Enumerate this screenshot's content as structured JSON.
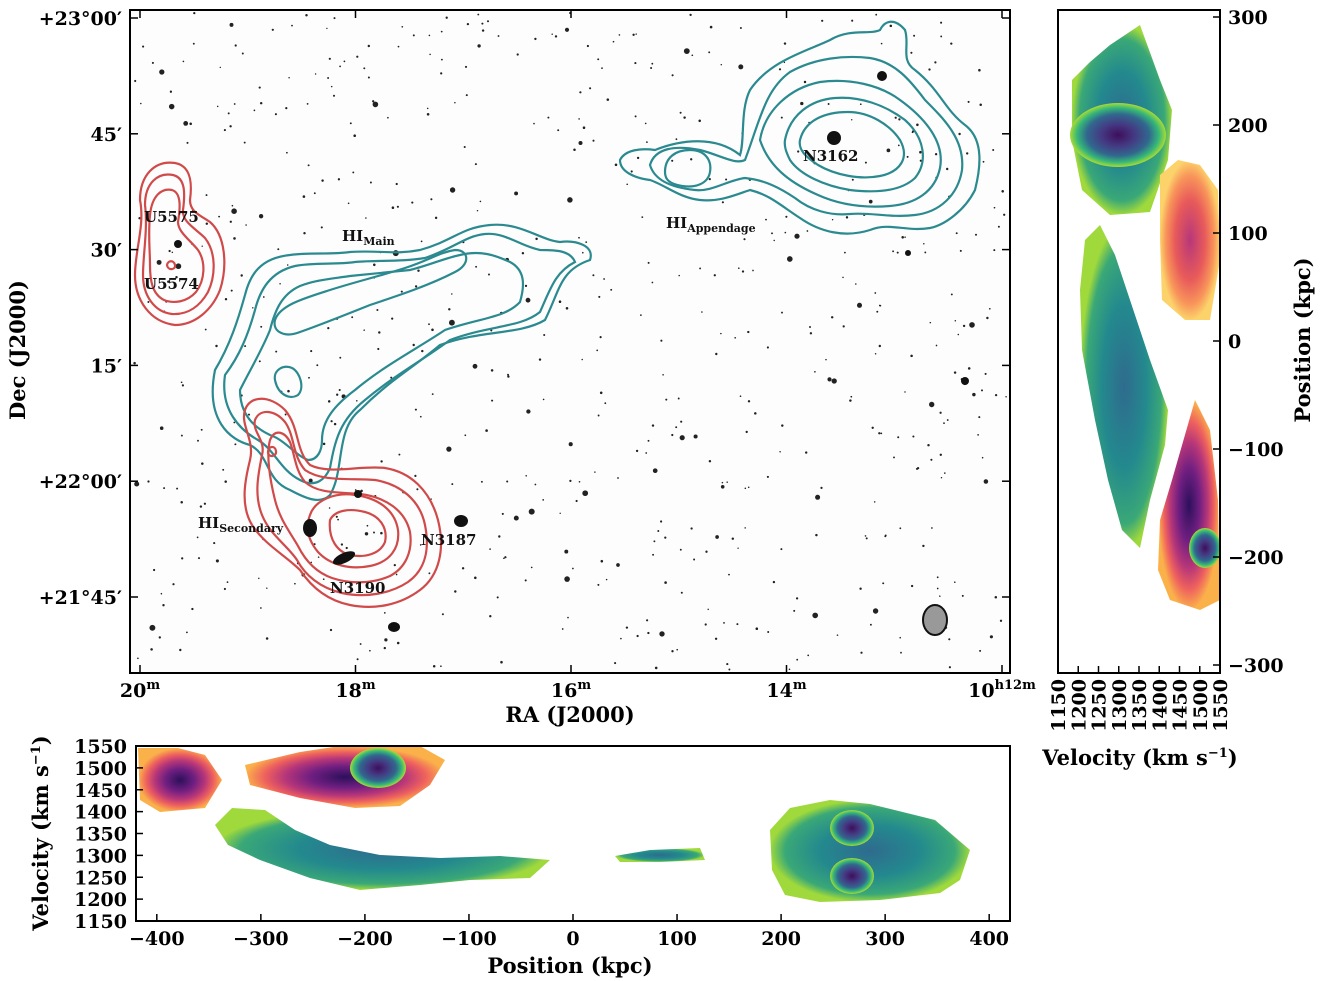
{
  "chart_data": [
    {
      "type": "map",
      "name": "sky-map",
      "xlabel": "RA (J2000)",
      "ylabel": "Dec (J2000)",
      "x_ticks": [
        {
          "pos": 20,
          "label": "20",
          "sup": "m"
        },
        {
          "pos": 18,
          "label": "18",
          "sup": "m"
        },
        {
          "pos": 16,
          "label": "16",
          "sup": "m"
        },
        {
          "pos": 14,
          "label": "14",
          "sup": "m"
        },
        {
          "pos": 12,
          "label": "10",
          "sup": "h12m"
        }
      ],
      "y_ticks": [
        {
          "pos": 60,
          "label": "+23°00′"
        },
        {
          "pos": 45,
          "label": "45′"
        },
        {
          "pos": 30,
          "label": "30′"
        },
        {
          "pos": 15,
          "label": "15′"
        },
        {
          "pos": 0,
          "label": "+22°00′"
        },
        {
          "pos": -15,
          "label": "+21°45′"
        }
      ],
      "annotations": [
        {
          "text": "U5575"
        },
        {
          "text": "U5574"
        },
        {
          "text": "HI",
          "sub": "Main"
        },
        {
          "text": "HI",
          "sub": "Appendage"
        },
        {
          "text": "N3162"
        },
        {
          "text": "HI",
          "sub": "Secondary"
        },
        {
          "text": "N3187"
        },
        {
          "text": "N3190"
        }
      ],
      "contour_colors": {
        "teal": "#2a8a8f",
        "red": "#d04a4a"
      }
    },
    {
      "type": "heatmap",
      "name": "position-velocity-right",
      "xlabel": "Velocity (km s",
      "xlabel_sup": "−1",
      "xlabel_end": ")",
      "ylabel": "Position (kpc)",
      "x_ticks": [
        1150,
        1200,
        1250,
        1300,
        1350,
        1400,
        1450,
        1500,
        1550
      ],
      "y_ticks": [
        {
          "v": 300,
          "label": "300"
        },
        {
          "v": 200,
          "label": "200"
        },
        {
          "v": 100,
          "label": "100"
        },
        {
          "v": 0,
          "label": "0"
        },
        {
          "v": -100,
          "label": "−100"
        },
        {
          "v": -200,
          "label": "−200"
        },
        {
          "v": -300,
          "label": "−300"
        }
      ],
      "xlim": [
        1150,
        1550
      ],
      "ylim": [
        -300,
        300
      ]
    },
    {
      "type": "heatmap",
      "name": "position-velocity-bottom",
      "xlabel": "Position (kpc)",
      "ylabel": "Velocity (km s",
      "ylabel_sup": "−1",
      "ylabel_end": ")",
      "x_ticks": [
        {
          "v": -400,
          "label": "−400"
        },
        {
          "v": -300,
          "label": "−300"
        },
        {
          "v": -200,
          "label": "−200"
        },
        {
          "v": -100,
          "label": "−100"
        },
        {
          "v": 0,
          "label": "0"
        },
        {
          "v": 100,
          "label": "100"
        },
        {
          "v": 200,
          "label": "200"
        },
        {
          "v": 300,
          "label": "300"
        },
        {
          "v": 400,
          "label": "400"
        }
      ],
      "y_ticks": [
        1550,
        1500,
        1450,
        1400,
        1350,
        1300,
        1250,
        1200,
        1150
      ],
      "xlim": [
        -420,
        420
      ],
      "ylim": [
        1150,
        1550
      ]
    }
  ]
}
